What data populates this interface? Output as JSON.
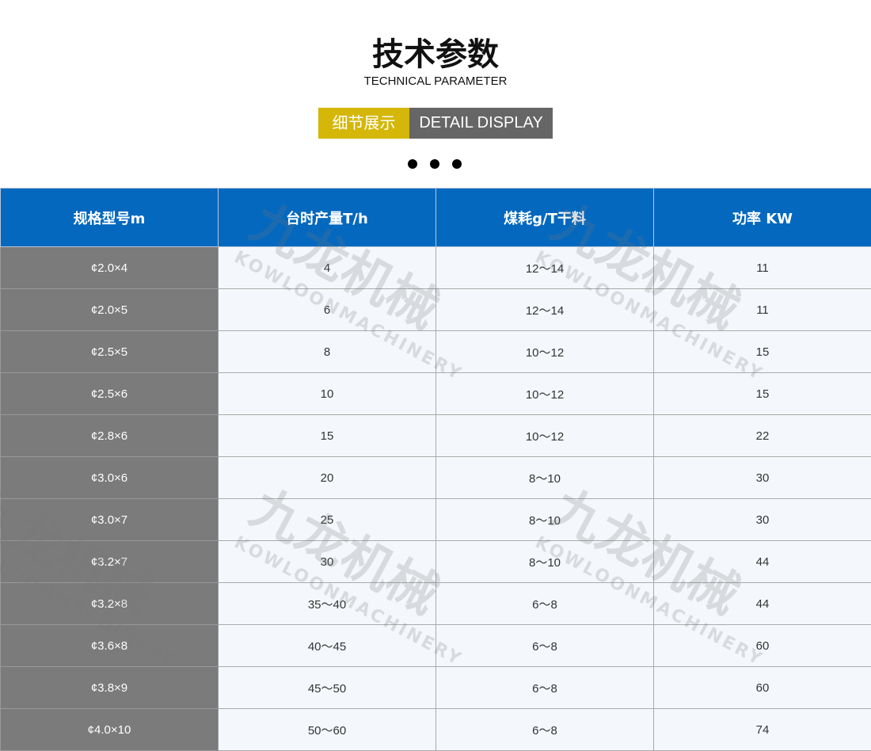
{
  "header": {
    "title": "技术参数",
    "subtitle": "TECHNICAL PARAMETER",
    "badge_cn": "细节展示",
    "badge_en": "DETAIL DISPLAY"
  },
  "table": {
    "headers": [
      "规格型号m",
      "台时产量T/h",
      "煤耗g/T干料",
      "功率 KW"
    ],
    "rows": [
      [
        "¢2.0×4",
        "4",
        "12～14",
        "11"
      ],
      [
        "¢2.0×5",
        "6",
        "12～14",
        "11"
      ],
      [
        "¢2.5×5",
        "8",
        "10～12",
        "15"
      ],
      [
        "¢2.5×6",
        "10",
        "10～12",
        "15"
      ],
      [
        "¢2.8×6",
        "15",
        "10～12",
        "22"
      ],
      [
        "¢3.0×6",
        "20",
        "8～10",
        "30"
      ],
      [
        "¢3.0×7",
        "25",
        "8～10",
        "30"
      ],
      [
        "¢3.2×7",
        "30",
        "8～10",
        "44"
      ],
      [
        "¢3.2×8",
        "35～40",
        "6～8",
        "44"
      ],
      [
        "¢3.6×8",
        "40～45",
        "6～8",
        "60"
      ],
      [
        "¢3.8×9",
        "45～50",
        "6～8",
        "60"
      ],
      [
        "¢4.0×10",
        "50～60",
        "6～8",
        "74"
      ]
    ]
  },
  "watermark": {
    "cn": "九龙机械",
    "en": "KOWLOONMACHINERY"
  },
  "colors": {
    "header_blue": "#0468bf",
    "badge_yellow": "#d4b708",
    "badge_gray": "#666666",
    "first_col": "#7b7b7b"
  }
}
